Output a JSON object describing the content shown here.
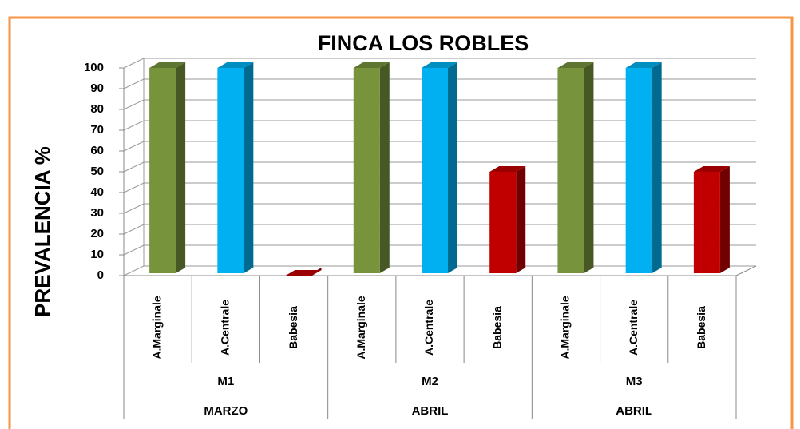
{
  "chart_data": {
    "type": "bar3d",
    "title": "FINCA LOS ROBLES",
    "y_label": "PREVALENCIA %",
    "categories": [
      "A.Marginale",
      "A.Centrale",
      "Babesia",
      "A.Marginale",
      "A.Centrale",
      "Babesia",
      "A.Marginale",
      "A.Centrale",
      "Babesia"
    ],
    "values": [
      100,
      100,
      0,
      100,
      100,
      50,
      100,
      100,
      50
    ],
    "colors": [
      "#77933c",
      "#00b0f0",
      "#c00000",
      "#77933c",
      "#00b0f0",
      "#c00000",
      "#77933c",
      "#00b0f0",
      "#c00000"
    ],
    "groups": [
      "M1",
      "M2",
      "M3"
    ],
    "months": [
      "MARZO",
      "ABRIL",
      "ABRIL"
    ],
    "ylim": [
      0,
      100
    ],
    "yticks": [
      0,
      10,
      20,
      30,
      40,
      50,
      60,
      70,
      80,
      90,
      100
    ],
    "grid": true
  }
}
